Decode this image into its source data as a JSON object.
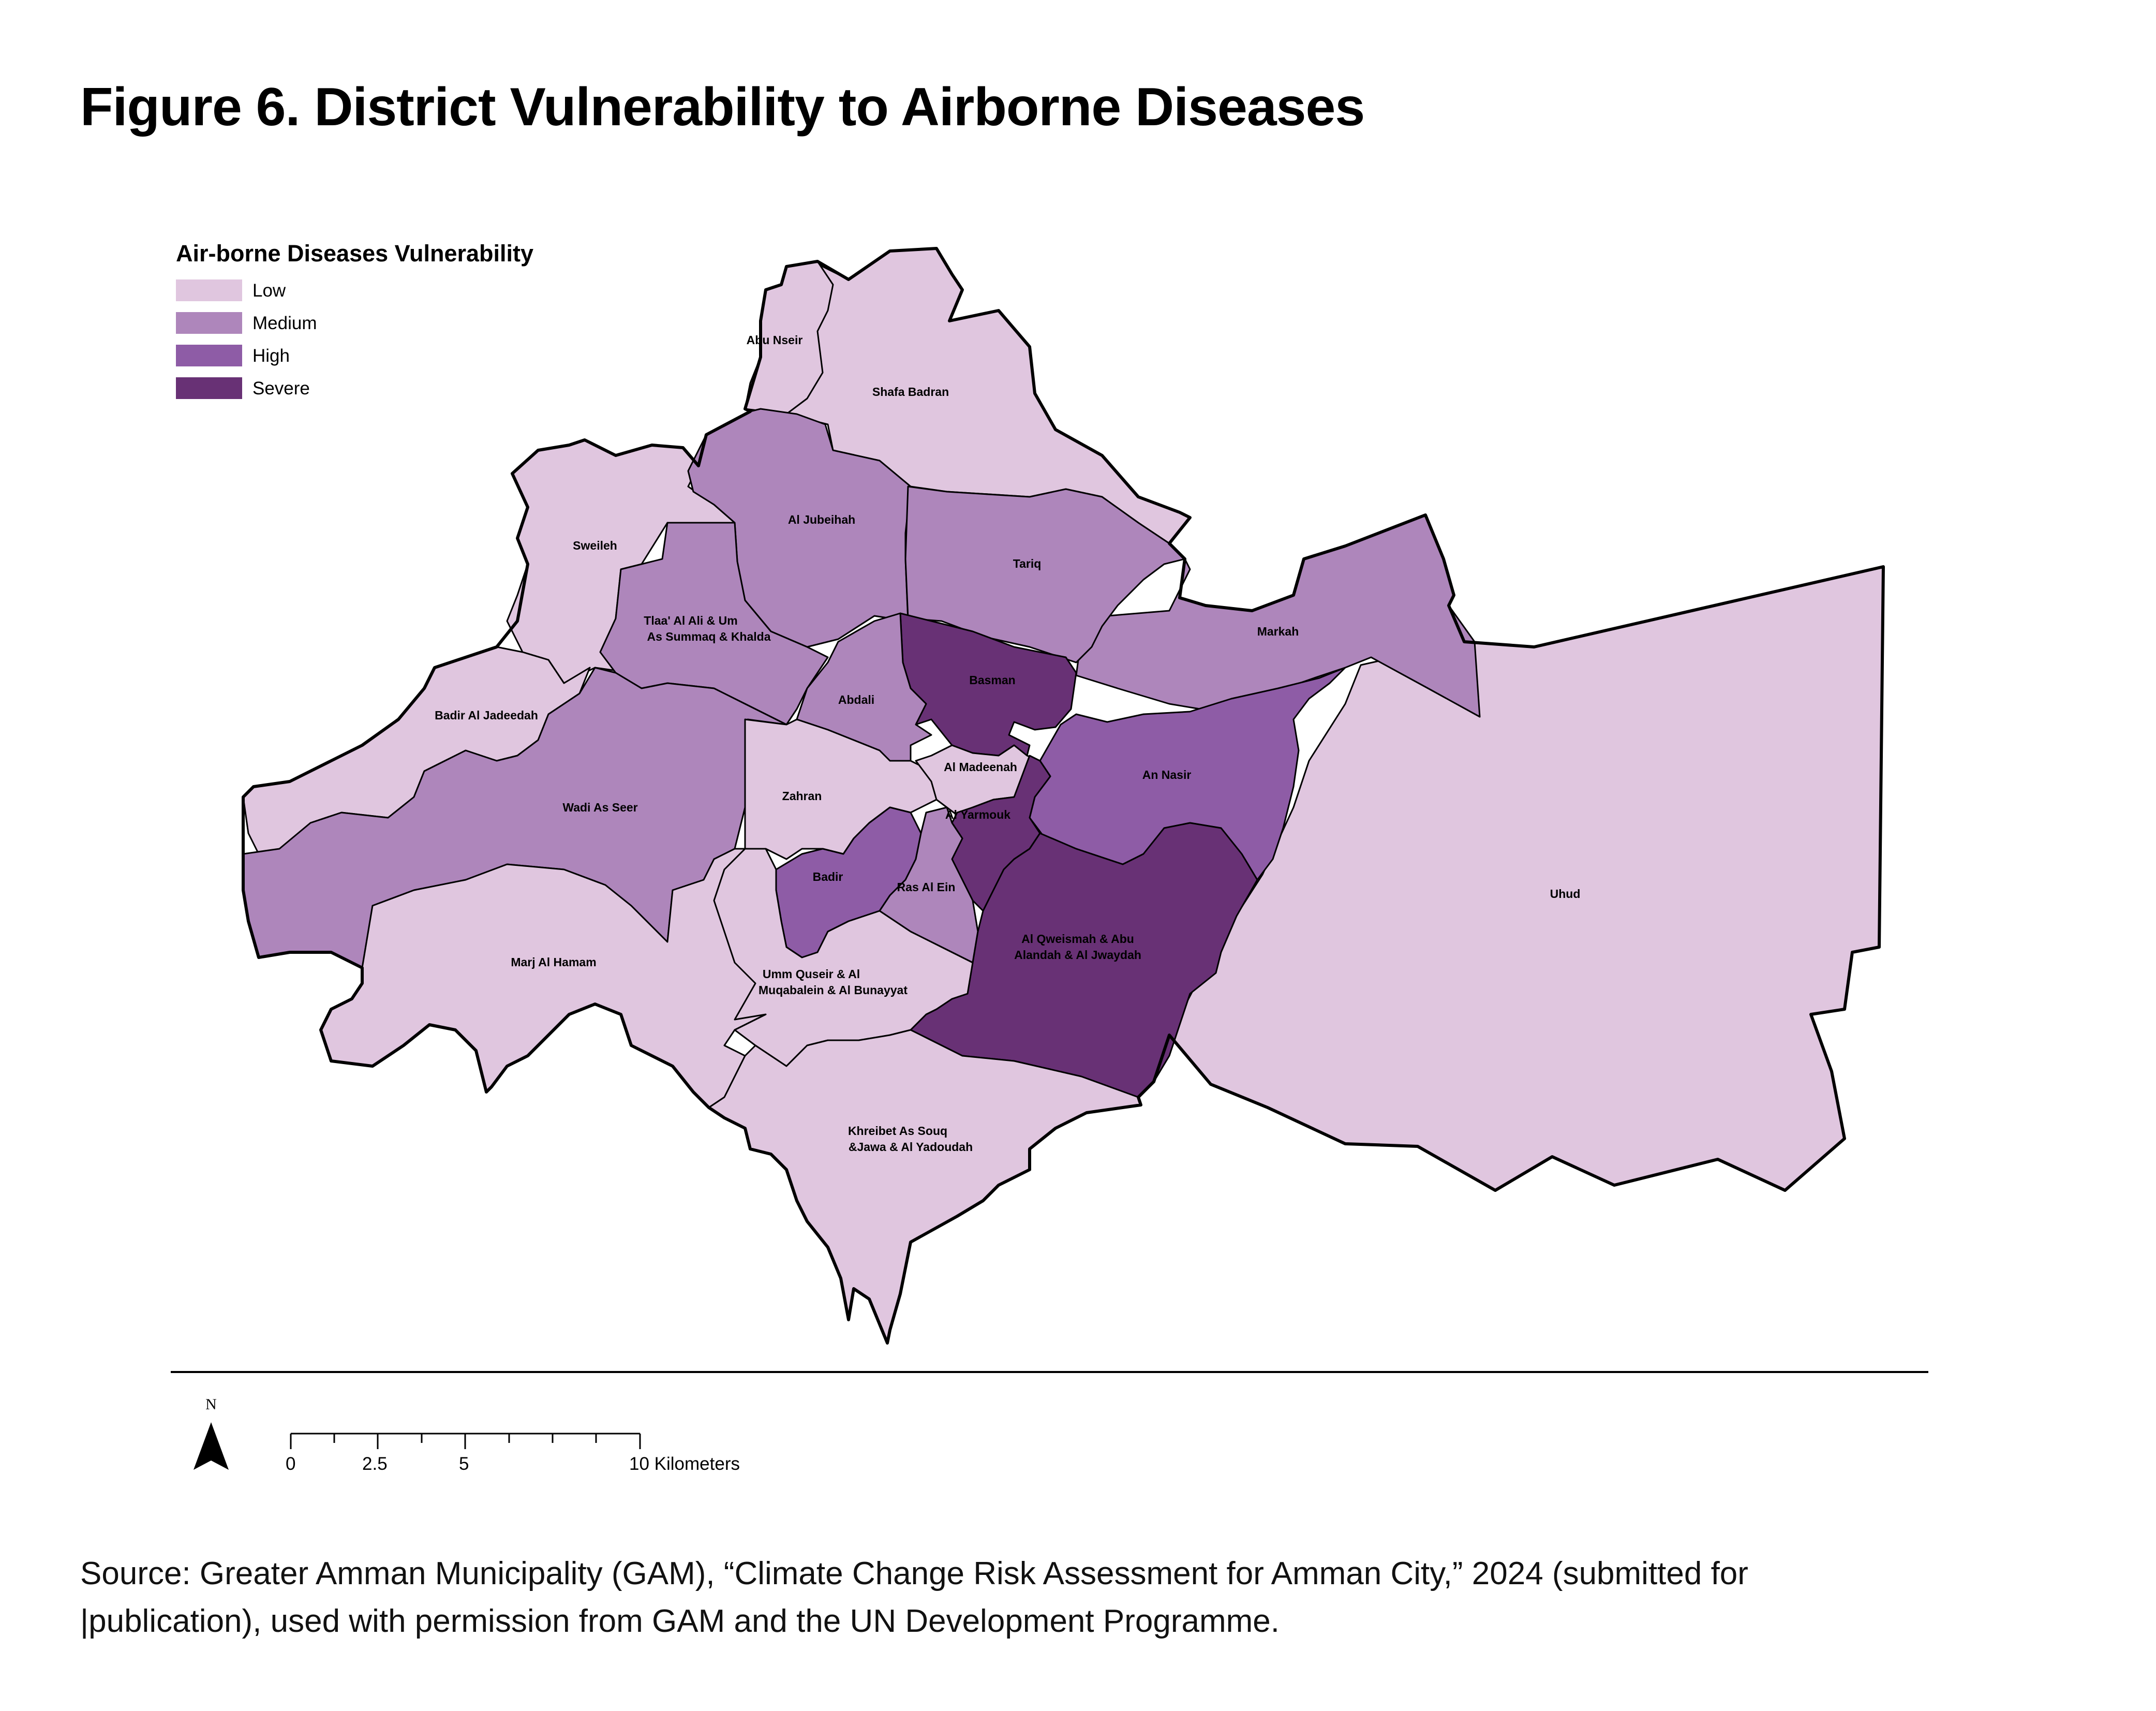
{
  "title": "Figure 6. District Vulnerability to Airborne Diseases",
  "legend": {
    "title": "Air-borne Diseases Vulnerability",
    "items": [
      {
        "label": "Low",
        "color": "#e0c6df"
      },
      {
        "label": "Medium",
        "color": "#ae86bb"
      },
      {
        "label": "High",
        "color": "#8e5ca6"
      },
      {
        "label": "Severe",
        "color": "#683175"
      }
    ]
  },
  "districts": [
    {
      "name": "Abu Nseir",
      "level": "Low"
    },
    {
      "name": "Shafa Badran",
      "level": "Low"
    },
    {
      "name": "Sweileh",
      "level": "Low"
    },
    {
      "name": "Al Jubeihah",
      "level": "Medium"
    },
    {
      "name": "Tariq",
      "level": "Medium"
    },
    {
      "name": "Tlaa' Al Ali & Um",
      "level": "Medium"
    },
    {
      "name": "As Summaq & Khalda",
      "level": "Medium"
    },
    {
      "name": "Markah",
      "level": "Medium"
    },
    {
      "name": "Basman",
      "level": "Severe"
    },
    {
      "name": "Abdali",
      "level": "Medium"
    },
    {
      "name": "Badir Al Jadeedah",
      "level": "Low"
    },
    {
      "name": "Al Madeenah",
      "level": "Low"
    },
    {
      "name": "An Nasir",
      "level": "High"
    },
    {
      "name": "Zahran",
      "level": "Low"
    },
    {
      "name": "Wadi As Seer",
      "level": "Medium"
    },
    {
      "name": "Al Yarmouk",
      "level": "Severe"
    },
    {
      "name": "Badir",
      "level": "High"
    },
    {
      "name": "Ras Al Ein",
      "level": "Medium"
    },
    {
      "name": "Uhud",
      "level": "Low"
    },
    {
      "name": "Al Qweismah & Abu",
      "level": "Severe"
    },
    {
      "name": "Alandah & Al Jwaydah",
      "level": "Severe"
    },
    {
      "name": "Marj Al Hamam",
      "level": "Low"
    },
    {
      "name": "Umm Quseir & Al",
      "level": "Low"
    },
    {
      "name": "Muqabalein & Al Bunayyat",
      "level": "Low"
    },
    {
      "name": "Khreibet As Souq",
      "level": "Low"
    },
    {
      "name": "&Jawa & Al Yadoudah",
      "level": "Low"
    }
  ],
  "north_label": "N",
  "scale_bar": {
    "ticks": [
      "0",
      "2.5",
      "5",
      "10 Kilometers"
    ]
  },
  "source": {
    "line1": "Source: Greater Amman Municipality (GAM), “Climate Change Risk Assessment for Amman City,” 2024 (submitted for",
    "line2": "|publication), used with permission from GAM and the UN Development Programme."
  }
}
